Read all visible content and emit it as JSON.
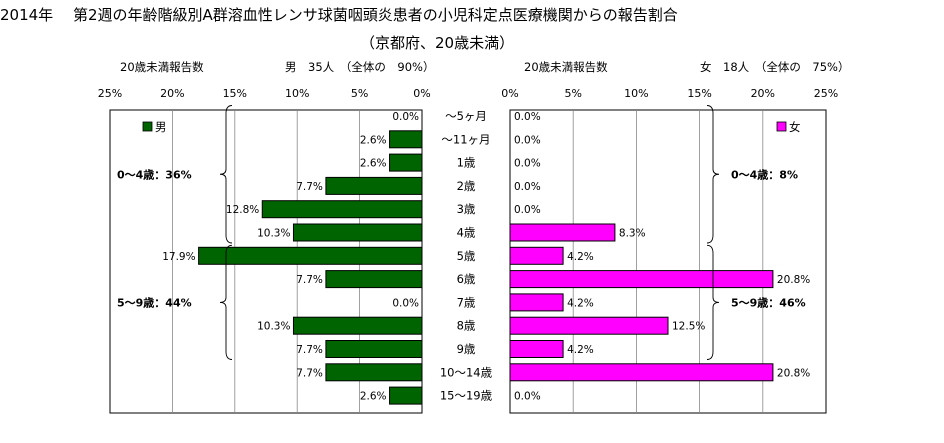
{
  "title": "2014年　 第2週の年齢階級別A群溶血性レンサ球菌咽頭炎患者の小児科定点医療機関からの報告割合",
  "subtitle": "（京都府、20歳未満）",
  "chart_data": {
    "type": "bar",
    "orientation": "horizontal",
    "categories": [
      "～5ヶ月",
      "～11ヶ月",
      "1歳",
      "2歳",
      "3歳",
      "4歳",
      "5歳",
      "6歳",
      "7歳",
      "8歳",
      "9歳",
      "10～14歳",
      "15～19歳"
    ],
    "xlim": [
      0,
      25
    ],
    "ticks": [
      "0%",
      "5%",
      "10%",
      "15%",
      "20%",
      "25%"
    ],
    "male": {
      "name": "男",
      "color": "#006400",
      "header_label": "20歳未満報告数",
      "header_count": "男　35人　（全体の　90%）",
      "values": [
        0.0,
        2.6,
        2.6,
        7.7,
        12.8,
        10.3,
        17.9,
        7.7,
        0.0,
        10.3,
        7.7,
        7.7,
        2.6
      ],
      "labels": [
        "0.0%",
        "2.6%",
        "2.6%",
        "7.7%",
        "12.8%",
        "10.3%",
        "17.9%",
        "7.7%",
        "0.0%",
        "10.3%",
        "7.7%",
        "7.7%",
        "2.6%"
      ],
      "groups": [
        {
          "text": "0～4歳：36%",
          "from": 0,
          "to": 5
        },
        {
          "text": "5～9歳：44%",
          "from": 6,
          "to": 10
        }
      ]
    },
    "female": {
      "name": "女",
      "color": "#ff00ff",
      "header_label": "20歳未満報告数",
      "header_count": "女　18人　（全体の　75%）",
      "values": [
        0.0,
        0.0,
        0.0,
        0.0,
        0.0,
        8.3,
        4.2,
        20.8,
        4.2,
        12.5,
        4.2,
        20.8,
        0.0
      ],
      "labels": [
        "0.0%",
        "0.0%",
        "0.0%",
        "0.0%",
        "0.0%",
        "8.3%",
        "4.2%",
        "20.8%",
        "4.2%",
        "12.5%",
        "4.2%",
        "20.8%",
        "0.0%"
      ],
      "groups": [
        {
          "text": "0～4歳：8%",
          "from": 0,
          "to": 5
        },
        {
          "text": "5～9歳：46%",
          "from": 6,
          "to": 10
        }
      ]
    }
  }
}
